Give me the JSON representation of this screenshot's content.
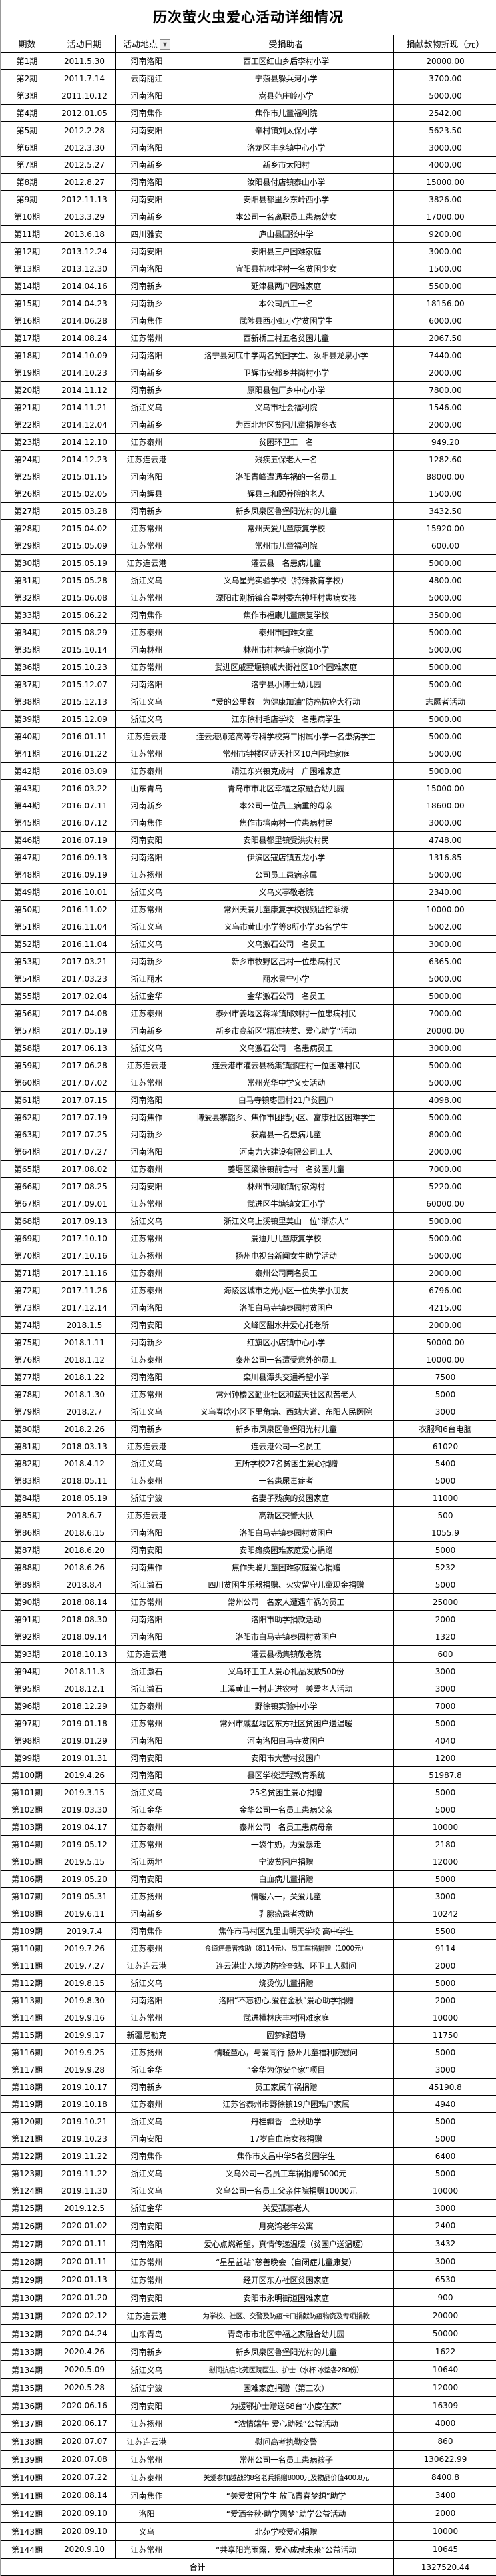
{
  "title": "历次萤火虫爱心活动详细情况",
  "headers": [
    "期数",
    "活动日期",
    "活动地点",
    "受捐助者",
    "捐献款物折现（元）"
  ],
  "filter_icon": "dropdown-arrow",
  "rows": [
    [
      "第1期",
      "2011.5.30",
      "河南洛阳",
      "西工区红山乡后李村小学",
      "20000.00"
    ],
    [
      "第2期",
      "2011.7.14",
      "云南丽江",
      "宁蒗县躲兵河小学",
      "3700.00"
    ],
    [
      "第3期",
      "2011.10.12",
      "河南洛阳",
      "嵩县范庄岭小学",
      "5000.00"
    ],
    [
      "第4期",
      "2012.01.05",
      "河南焦作",
      "焦作市儿童福利院",
      "2542.00"
    ],
    [
      "第5期",
      "2012.2.28",
      "河南安阳",
      "辛村镇刘太保小学",
      "5623.50"
    ],
    [
      "第6期",
      "2012.3.30",
      "河南洛阳",
      "洛龙区丰李镇中心小学",
      "3000.00"
    ],
    [
      "第7期",
      "2012.5.27",
      "河南新乡",
      "新乡市太阳村",
      "4000.00"
    ],
    [
      "第8期",
      "2012.8.27",
      "河南洛阳",
      "汝阳县付店镇泰山小学",
      "15000.00"
    ],
    [
      "第9期",
      "2012.11.13",
      "河南安阳",
      "安阳县都里乡东岭西小学",
      "3826.00"
    ],
    [
      "第10期",
      "2013.3.29",
      "河南新乡",
      "本公司一名离职员工患病幼女",
      "17000.00"
    ],
    [
      "第11期",
      "2013.6.18",
      "四川雅安",
      "庐山县国张中学",
      "9200.00"
    ],
    [
      "第12期",
      "2013.12.24",
      "河南安阳",
      "安阳县三户困难家庭",
      "3000.00"
    ],
    [
      "第13期",
      "2013.12.30",
      "河南洛阳",
      "宜阳县柿树坪村一名贫困少女",
      "1500.00"
    ],
    [
      "第14期",
      "2014.04.16",
      "河南新乡",
      "延津县两户困难家庭",
      "5500.00"
    ],
    [
      "第15期",
      "2014.04.23",
      "河南新乡",
      "本公司员工一名",
      "18156.00"
    ],
    [
      "第16期",
      "2014.06.28",
      "河南焦作",
      "武陟县西小虹小学贫困学生",
      "6000.00"
    ],
    [
      "第17期",
      "2014.08.24",
      "江苏常州",
      "西新桥三村五名贫困儿童",
      "2067.50"
    ],
    [
      "第18期",
      "2014.10.09",
      "河南洛阳",
      "洛宁县河底中学两名贫困学生、汝阳县龙泉小学",
      "7440.00"
    ],
    [
      "第19期",
      "2014.10.23",
      "河南新乡",
      "卫辉市安都乡井岗村小学",
      "2000.00"
    ],
    [
      "第20期",
      "2014.11.12",
      "河南新乡",
      "原阳县包厂乡中心小学",
      "7800.00"
    ],
    [
      "第21期",
      "2014.11.21",
      "浙江义乌",
      "义乌市社会福利院",
      "1546.00"
    ],
    [
      "第22期",
      "2014.12.04",
      "河南新乡",
      "为西北地区贫困儿童捐赠冬衣",
      "2000.00"
    ],
    [
      "第23期",
      "2014.12.10",
      "江苏泰州",
      "贫困环卫工一名",
      "949.20"
    ],
    [
      "第24期",
      "2014.12.23",
      "江苏连云港",
      "残疾五保老人一名",
      "1282.60"
    ],
    [
      "第25期",
      "2015.01.15",
      "河南洛阳",
      "洛阳青峰遭遇车祸的一名员工",
      "88000.00"
    ],
    [
      "第26期",
      "2015.02.05",
      "河南辉县",
      "辉县三和颐养院的老人",
      "1500.00"
    ],
    [
      "第27期",
      "2015.03.28",
      "河南新乡",
      "新乡凤泉区鲁堡阳光村的儿童",
      "3432.50"
    ],
    [
      "第28期",
      "2015.04.02",
      "江苏常州",
      "常州天爱儿童康复学校",
      "15920.00"
    ],
    [
      "第29期",
      "2015.05.09",
      "江苏常州",
      "常州市儿童福利院",
      "600.00"
    ],
    [
      "第30期",
      "2015.05.19",
      "江苏连云港",
      "灌云县一名患病儿童",
      "5000.00"
    ],
    [
      "第31期",
      "2015.05.28",
      "浙江义乌",
      "义乌星光实验学校（特殊教育学校）",
      "4800.00"
    ],
    [
      "第32期",
      "2015.06.08",
      "江苏常州",
      "溧阳市别桥镇合星村委东神圩村患病女孩",
      "5000.00"
    ],
    [
      "第33期",
      "2015.06.22",
      "河南焦作",
      "焦作市福康儿童康复学校",
      "3500.00"
    ],
    [
      "第34期",
      "2015.08.29",
      "江苏泰州",
      "泰州市困难女童",
      "5000.00"
    ],
    [
      "第35期",
      "2015.10.14",
      "河南林州",
      "林州市桂林镇千家岗小学",
      "5000.00"
    ],
    [
      "第36期",
      "2015.10.23",
      "江苏常州",
      "武进区戚墅堰镇戚大街社区10个困难家庭",
      "5000.00"
    ],
    [
      "第37期",
      "2015.12.07",
      "河南洛阳",
      "洛宁县小博士幼儿园",
      "5000.00"
    ],
    [
      "第38期",
      "2015.12.13",
      "浙江义乌",
      "“爱的公里数　为健康加油”防癌抗癌大行动",
      "志愿者活动"
    ],
    [
      "第39期",
      "2015.12.09",
      "浙江义乌",
      "江东徐村毛店学校一名患病学生",
      "5000.00"
    ],
    [
      "第40期",
      "2016.01.11",
      "江苏连云港",
      "连云港师范高等专科学校第二附属小学一名患病学生",
      "5000.00"
    ],
    [
      "第41期",
      "2016.01.22",
      "江苏常州",
      "常州市钟楼区蓝天社区10户困难家庭",
      "5000.00"
    ],
    [
      "第42期",
      "2016.03.09",
      "江苏泰州",
      "靖江东兴镇克成村一户困难家庭",
      "5000.00"
    ],
    [
      "第43期",
      "2016.03.22",
      "山东青岛",
      "青岛市市北区幸福之家融合幼儿园",
      "15000.00"
    ],
    [
      "第44期",
      "2016.07.11",
      "河南新乡",
      "本公司一位员工病重的母亲",
      "18600.00"
    ],
    [
      "第45期",
      "2016.07.12",
      "河南焦作",
      "焦作市墙南村一位患病村民",
      "3000.00"
    ],
    [
      "第46期",
      "2016.07.19",
      "河南安阳",
      "安阳县都里镇受洪灾村民",
      "4748.00"
    ],
    [
      "第47期",
      "2016.09.13",
      "河南洛阳",
      "伊滨区寇店镇五龙小学",
      "1316.85"
    ],
    [
      "第48期",
      "2016.09.19",
      "江苏扬州",
      "公司员工患病亲属",
      "5000.00"
    ],
    [
      "第49期",
      "2016.10.01",
      "浙江义乌",
      "义乌义亭敬老院",
      "2340.00"
    ],
    [
      "第50期",
      "2016.11.02",
      "江苏常州",
      "常州天爱儿童康复学校视频监控系统",
      "10000.00"
    ],
    [
      "第51期",
      "2016.11.04",
      "浙江义乌",
      "义乌市黄山小学等8所小学35名学生",
      "5002.00"
    ],
    [
      "第52期",
      "2016.11.04",
      "浙江义乌",
      "义乌激石公司一名员工",
      "3000.00"
    ],
    [
      "第53期",
      "2017.03.21",
      "河南新乡",
      "新乡市牧野区吕村一位患病村民",
      "6365.00"
    ],
    [
      "第54期",
      "2017.03.23",
      "浙江丽水",
      "丽水景宁小学",
      "5000.00"
    ],
    [
      "第55期",
      "2017.02.04",
      "浙江金华",
      "金华激石公司一名员工",
      "5000.00"
    ],
    [
      "第56期",
      "2017.04.08",
      "江苏泰州",
      "泰州市姜堰区蒋垛镇邱刘村一位患病村民",
      "7000.00"
    ],
    [
      "第57期",
      "2017.05.19",
      "河南新乡",
      "新乡市高新区“精准扶贫、爱心助学”活动",
      "20000.00"
    ],
    [
      "第58期",
      "2017.06.13",
      "浙江义乌",
      "义乌激石公司一名患病员工",
      "3000.00"
    ],
    [
      "第59期",
      "2017.06.28",
      "江苏连云港",
      "连云港市灌云县杨集镇邵庄村一位困难村民",
      "5000.00"
    ],
    [
      "第60期",
      "2017.07.02",
      "江苏常州",
      "常州光华中学义卖活动",
      "5000.00"
    ],
    [
      "第61期",
      "2017.07.15",
      "河南洛阳",
      "白马寺镇枣园村21户贫困户",
      "4098.00"
    ],
    [
      "第62期",
      "2017.07.19",
      "河南焦作",
      "博爱县寨豁乡、焦作市团结小区、富康社区困难学生",
      "5000.00"
    ],
    [
      "第63期",
      "2017.07.25",
      "河南新乡",
      "获嘉县一名患病儿童",
      "8000.00"
    ],
    [
      "第64期",
      "2017.07.27",
      "河南洛阳",
      "河南力大建设有限公司工人",
      "2000.00"
    ],
    [
      "第65期",
      "2017.08.02",
      "江苏泰州",
      "姜堰区梁徐镇前舍村一名贫困儿童",
      "7000.00"
    ],
    [
      "第66期",
      "2017.08.25",
      "河南安阳",
      "林州市河顺镇付家沟村",
      "5220.00"
    ],
    [
      "第67期",
      "2017.09.01",
      "江苏常州",
      "武进区牛塘镇文汇小学",
      "60000.00"
    ],
    [
      "第68期",
      "2017.09.13",
      "浙江义乌",
      "浙江义乌上溪镇里美山一位“渐冻人”",
      "5000.00"
    ],
    [
      "第69期",
      "2017.10.10",
      "江苏常州",
      "爱迪儿儿童康复学校",
      "5000.00"
    ],
    [
      "第70期",
      "2017.10.16",
      "江苏扬州",
      "扬州电视台新闻女生助学活动",
      "5000.00"
    ],
    [
      "第71期",
      "2017.11.16",
      "江苏泰州",
      "泰州公司两名员工",
      "2000.00"
    ],
    [
      "第72期",
      "2017.11.26",
      "江苏泰州",
      "海陵区城市之光小区一位失学小朋友",
      "6796.00"
    ],
    [
      "第73期",
      "2017.12.14",
      "河南洛阳",
      "洛阳白马寺镇枣园村贫困户",
      "4215.00"
    ],
    [
      "第74期",
      "2018.1.5",
      "河南安阳",
      "文峰区甜水井爱心托老所",
      "2000.00"
    ],
    [
      "第75期",
      "2018.1.11",
      "河南新乡",
      "红旗区小店镇中心小学",
      "50000.00"
    ],
    [
      "第76期",
      "2018.1.12",
      "江苏泰州",
      "泰州公司一名遭受意外的员工",
      "10000.00"
    ],
    [
      "第77期",
      "2018.1.22",
      "河南洛阳",
      "栾川县潭头交通希望小学",
      "7500"
    ],
    [
      "第78期",
      "2018.1.30",
      "江苏常州",
      "常州钟楼区勤业社区和蓝天社区孤苦老人",
      "5000"
    ],
    [
      "第79期",
      "2018.2.7",
      "浙江义乌",
      "义乌春晗小区下里角塘、西站大道、东阳人民医院",
      "3000"
    ],
    [
      "第80期",
      "2018.2.26",
      "河南新乡",
      "新乡市凤泉区鲁堡阳光村儿童",
      "衣服和6台电脑"
    ],
    [
      "第81期",
      "2018.03.13",
      "江苏连云港",
      "连云港公司一名员工",
      "61020"
    ],
    [
      "第82期",
      "2018.4.12",
      "浙江义乌",
      "五所学校27名贫困生爱心捐赠",
      "5400"
    ],
    [
      "第83期",
      "2018.05.11",
      "江苏泰州",
      "一名患尿毒症者",
      "5000"
    ],
    [
      "第84期",
      "2018.05.19",
      "浙江宁波",
      "一名妻子残疾的贫困家庭",
      "11000"
    ],
    [
      "第85期",
      "2018.6.7",
      "江苏连云港",
      "高新区交警大队",
      "500"
    ],
    [
      "第86期",
      "2018.6.15",
      "河南洛阳",
      "洛阳白马寺镇枣园村贫困户",
      "1055.9"
    ],
    [
      "第87期",
      "2018.6.20",
      "河南安阳",
      "安阳瘫痪困难家庭爱心捐赠",
      "5000"
    ],
    [
      "第88期",
      "2018.6.26",
      "河南焦作",
      "焦作失聪儿童困难家庭爱心捐赠",
      "5232"
    ],
    [
      "第89期",
      "2018.8.4",
      "浙江激石",
      "四川贫困生乐器捐赠、火灾留守儿童现金捐赠",
      "5000"
    ],
    [
      "第90期",
      "2018.08.14",
      "江苏常州",
      "常州公司一名家人遭遇车祸的员工",
      "25000"
    ],
    [
      "第91期",
      "2018.08.30",
      "河南洛阳",
      "洛阳市助学捐款活动",
      "2000"
    ],
    [
      "第92期",
      "2018.09.14",
      "河南洛阳",
      "洛阳市白马寺镇枣园村贫困户",
      "1320"
    ],
    [
      "第93期",
      "2018.10.13",
      "江苏连云港",
      "灌云县杨集镇敬老院",
      "600"
    ],
    [
      "第94期",
      "2018.11.3",
      "浙江激石",
      "义乌环卫工人爱心礼品发放500份",
      "3000"
    ],
    [
      "第95期",
      "2018.12.1",
      "浙江激石",
      "上溪黄山一村走进农村　关爱老人活动",
      "3000"
    ],
    [
      "第96期",
      "2018.12.29",
      "江苏泰州",
      "野徐镇实验中小学",
      "7000"
    ],
    [
      "第97期",
      "2019.01.18",
      "江苏常州",
      "常州市戚墅堰区东方社区贫困户送温暖",
      "5000"
    ],
    [
      "第98期",
      "2019.01.29",
      "河南洛阳",
      "河南洛阳白马寺贫困户",
      "4040"
    ],
    [
      "第99期",
      "2019.01.31",
      "河南安阳",
      "安阳市大营村贫困户",
      "1200"
    ],
    [
      "第100期",
      "2019.4.26",
      "河南洛阳",
      "县区学校远程教育系统",
      "51987.8"
    ],
    [
      "第101期",
      "2019.3.15",
      "浙江义乌",
      "25名贫困生爱心捐赠",
      "5000"
    ],
    [
      "第102期",
      "2019.03.30",
      "浙江金华",
      "金华公司一名员工患病父亲",
      "5000"
    ],
    [
      "第103期",
      "2019.04.17",
      "江苏泰州",
      "泰州公司一名员工患病母亲",
      "10000"
    ],
    [
      "第104期",
      "2019.05.12",
      "江苏常州",
      "一袋牛奶，为爱暴走",
      "2180"
    ],
    [
      "第105期",
      "2019.5.15",
      "浙江两地",
      "宁波贫困户捐赠",
      "12000"
    ],
    [
      "第106期",
      "2019.05.20",
      "河南安阳",
      "白血病儿童捐赠",
      "5000"
    ],
    [
      "第107期",
      "2019.05.31",
      "江苏扬州",
      "情暖六一，关爱儿童",
      "3000"
    ],
    [
      "第108期",
      "2019.6.11",
      "河南新乡",
      "乳腺癌患者救助",
      "10242"
    ],
    [
      "第109期",
      "2019.7.4",
      "河南焦作",
      "焦作市马村区九里山明天学校 高中学生",
      "5500"
    ],
    [
      "第110期",
      "2019.7.26",
      "江苏泰州",
      "食道癌患者救助（8114元）、员工车祸捐赠（1000元）",
      "9114"
    ],
    [
      "第111期",
      "2019.7.27",
      "江苏连云港",
      "连云港出入境边防检查站、环卫工人慰问",
      "2000"
    ],
    [
      "第112期",
      "2019.8.15",
      "浙江义乌",
      "烧烫伤儿童捐赠",
      "5000"
    ],
    [
      "第113期",
      "2019.8.30",
      "河南洛阳",
      "洛阳“不忘初心.爱在金秋”爱心助学捐赠",
      "2000"
    ],
    [
      "第114期",
      "2019.9.16",
      "江苏常州",
      "武进横林庆丰村困难家庭",
      "10000"
    ],
    [
      "第115期",
      "2019.9.17",
      "新疆尼勒克",
      "圆梦绿茵场",
      "11750"
    ],
    [
      "第116期",
      "2019.9.25",
      "江苏扬州",
      "情暖童心，与爱同行-扬州儿童福利院慰问",
      "5000"
    ],
    [
      "第117期",
      "2019.9.28",
      "浙江金华",
      "“金华为你安个家”项目",
      "3000"
    ],
    [
      "第118期",
      "2019.10.17",
      "河南新乡",
      "员工家属车祸捐赠",
      "45190.8"
    ],
    [
      "第119期",
      "2019.10.18",
      "江苏泰州",
      "江苏省泰州市野徐镇19户困难户家属",
      "4940"
    ],
    [
      "第120期",
      "2019.10.21",
      "浙江义乌",
      "丹桂飘香　金秋助学",
      "5000"
    ],
    [
      "第121期",
      "2019.10.23",
      "河南安阳",
      "17岁白血病女孩捐赠",
      "5000"
    ],
    [
      "第122期",
      "2019.11.22",
      "河南焦作",
      "焦作市文昌中学5名贫困学生",
      "6400"
    ],
    [
      "第123期",
      "2019.11.22",
      "浙江义乌",
      "义乌公司一名员工车祸捐赠5000元",
      "5000"
    ],
    [
      "第124期",
      "2019.11.30",
      "浙江义乌",
      "义乌公司一名员工父亲住院捐赠10000元",
      "10000"
    ],
    [
      "第125期",
      "2019.12.5",
      "浙江金华",
      "关爱孤寡老人",
      "3000"
    ],
    [
      "第126期",
      "2020.01.02",
      "河南安阳",
      "月亮湾老年公寓",
      "2400"
    ],
    [
      "第127期",
      "2020.01.11",
      "河南洛阳",
      "爱心点燃希望，真情传递温暖（贫困户送温暖）",
      "3432"
    ],
    [
      "第128期",
      "2020.01.11",
      "江苏常州",
      "“星星益站”慈善晚会（自闭症儿童康复）",
      "3000"
    ],
    [
      "第129期",
      "2020.01.13",
      "江苏常州",
      "经开区东方社区贫困家庭",
      "6530"
    ],
    [
      "第130期",
      "2020.01.20",
      "河南安阳",
      "安阳市永明街道困难家庭",
      "900"
    ],
    [
      "第131期",
      "2020.02.12",
      "江苏连云港",
      "为学校、社区、交警及防疫卡口捐献防疫物资及专项捐款",
      "20000"
    ],
    [
      "第132期",
      "2020.04.24",
      "山东青岛",
      "青岛市市北区幸福之家融合幼儿园",
      "50000"
    ],
    [
      "第133期",
      "2020.4.26",
      "河南新乡",
      "新乡凤泉区鲁堡阳光村的儿童",
      "1622"
    ],
    [
      "第134期",
      "2020.5.09",
      "浙江义乌",
      "慰问抗疫北苑医院医生、护士（水杯 冰垫各280份）",
      "10640"
    ],
    [
      "第135期",
      "2020.5.28",
      "浙江宁波",
      "困难家庭捐赠（第三次）",
      "12000"
    ],
    [
      "第136期",
      "2020.06.16",
      "河南安阳",
      "为援鄂护士赠送68台“小度在家”",
      "16309"
    ],
    [
      "第137期",
      "2020.06.17",
      "江苏扬州",
      "“浓情端午 爱心助残”公益活动",
      "4000"
    ],
    [
      "第138期",
      "2020.07.07",
      "江苏连云港",
      "慰问高考执勤交警",
      "860"
    ],
    [
      "第139期",
      "2020.07.08",
      "江苏常州",
      "常州公司一名员工患病孩子",
      "130622.99"
    ],
    [
      "第140期",
      "2020.07.22",
      "江苏泰州",
      "关爱参加越战的8名老兵捐赠8000元及物品价值400.8元",
      "8400.8"
    ],
    [
      "第141期",
      "2020.08.14",
      "河南焦作",
      "“关爱贫困学生 放飞青春梦想”助学",
      "3400"
    ],
    [
      "第142期",
      "2020.09.10",
      "洛阳",
      "“爱洒金秋·助学圆梦”助学公益活动",
      "2000"
    ],
    [
      "第143期",
      "2020.09.10",
      "义乌",
      "北苑学校爱心捐赠",
      "10000"
    ],
    [
      "第144期",
      "2020.9.10",
      "江苏常州",
      "“共享阳光雨露，爱心成就未来”公益活动",
      "10645"
    ]
  ],
  "total": {
    "label": "合计",
    "value": "1327520.44"
  }
}
